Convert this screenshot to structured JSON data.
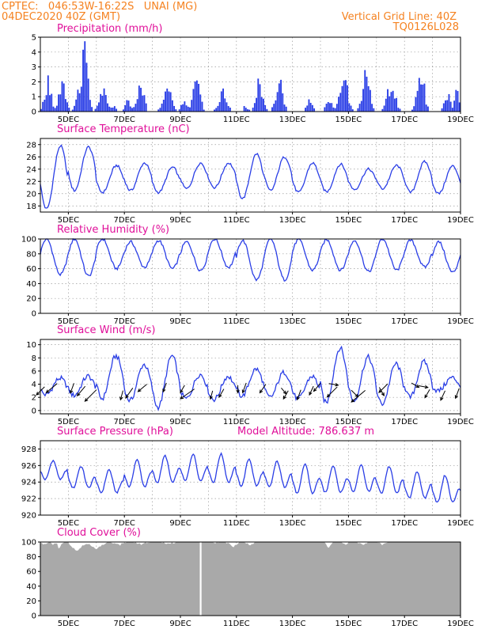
{
  "header": {
    "line1_left": "CPTEC:   046:53W-16:22S   UNAI (MG)",
    "line2_left": "04DEC2020 40Z (GMT)",
    "line1_right": "Vertical Grid Line: 40Z",
    "line2_right": "TQ0126L028"
  },
  "colors": {
    "header": "#f58220",
    "panel_title": "#e0109a",
    "line": "#2a3ee6",
    "precip_bar": "#2a3ee6",
    "cloud_fill": "#a9a9a9",
    "wind_arrow": "#000000"
  },
  "x_tick_labels": [
    "5DEC",
    "7DEC",
    "9DEC",
    "11DEC",
    "13DEC",
    "15DEC",
    "17DEC",
    "19DEC"
  ],
  "chart_data": [
    {
      "id": "precip",
      "type": "bar",
      "title": "Precipitation (mm/h)",
      "ylim": [
        0,
        5
      ],
      "yticks": [
        0,
        1,
        2,
        3,
        4,
        5
      ],
      "xlim_days": [
        4.0,
        19.0
      ],
      "grid": true,
      "events": [
        {
          "day": 4.25,
          "peak": 2.8,
          "width": 0.2
        },
        {
          "day": 4.75,
          "peak": 2.6,
          "width": 0.22
        },
        {
          "day": 5.3,
          "peak": 1.6,
          "width": 0.15
        },
        {
          "day": 5.55,
          "peak": 5.0,
          "width": 0.22
        },
        {
          "day": 6.2,
          "peak": 2.2,
          "width": 0.25
        },
        {
          "day": 6.6,
          "peak": 0.6,
          "width": 0.15
        },
        {
          "day": 7.1,
          "peak": 0.9,
          "width": 0.18
        },
        {
          "day": 7.55,
          "peak": 2.1,
          "width": 0.22
        },
        {
          "day": 8.5,
          "peak": 2.2,
          "width": 0.25
        },
        {
          "day": 9.1,
          "peak": 1.0,
          "width": 0.18
        },
        {
          "day": 9.55,
          "peak": 2.7,
          "width": 0.22
        },
        {
          "day": 10.5,
          "peak": 1.8,
          "width": 0.25
        },
        {
          "day": 11.3,
          "peak": 0.5,
          "width": 0.15
        },
        {
          "day": 11.8,
          "peak": 2.7,
          "width": 0.2
        },
        {
          "day": 12.5,
          "peak": 2.8,
          "width": 0.22
        },
        {
          "day": 13.6,
          "peak": 1.3,
          "width": 0.18
        },
        {
          "day": 14.3,
          "peak": 1.2,
          "width": 0.2
        },
        {
          "day": 14.8,
          "peak": 3.3,
          "width": 0.25
        },
        {
          "day": 15.6,
          "peak": 3.5,
          "width": 0.22
        },
        {
          "day": 16.5,
          "peak": 2.4,
          "width": 0.25
        },
        {
          "day": 17.55,
          "peak": 3.6,
          "width": 0.22
        },
        {
          "day": 18.5,
          "peak": 1.4,
          "width": 0.2
        },
        {
          "day": 18.85,
          "peak": 1.9,
          "width": 0.15
        }
      ]
    },
    {
      "id": "temp",
      "type": "line",
      "title": "Surface Temperature (nC)",
      "ylim": [
        17,
        29
      ],
      "yticks": [
        18,
        20,
        22,
        24,
        26,
        28
      ],
      "xlim_days": [
        4.0,
        19.0
      ],
      "grid": true,
      "daily_min": [
        17.5,
        20.5,
        20.2,
        20.5,
        20.2,
        20.8,
        21.0,
        19.2,
        20.5,
        20.2,
        20.3,
        20.7,
        20.8,
        20.2,
        20.0
      ],
      "daily_max": [
        27.8,
        27.6,
        24.6,
        25.0,
        24.3,
        25.0,
        25.0,
        26.5,
        26.0,
        25.0,
        24.8,
        24.0,
        24.6,
        25.2,
        24.5
      ]
    },
    {
      "id": "rh",
      "type": "line",
      "title": "Relative Humidity (%)",
      "ylim": [
        0,
        100
      ],
      "yticks": [
        0,
        20,
        40,
        60,
        80,
        100
      ],
      "xlim_days": [
        4.0,
        19.0
      ],
      "grid": true,
      "daily_max": [
        100,
        100,
        100,
        96,
        98,
        96,
        100,
        98,
        100,
        99,
        99,
        98,
        100,
        98,
        96
      ],
      "daily_min": [
        52,
        50,
        60,
        62,
        60,
        58,
        62,
        45,
        45,
        58,
        58,
        56,
        58,
        62,
        55
      ]
    },
    {
      "id": "wind",
      "type": "line",
      "title": "Surface Wind (m/s)",
      "ylim": [
        -0.5,
        10.8
      ],
      "yticks": [
        0,
        2,
        4,
        6,
        8,
        10
      ],
      "xlim_days": [
        4.0,
        19.0
      ],
      "grid": true,
      "daily_max": [
        4.9,
        5.2,
        8.3,
        7.0,
        8.3,
        5.5,
        5.2,
        6.3,
        5.8,
        5.2,
        9.5,
        8.1,
        7.1,
        7.4,
        5.0
      ],
      "daily_min": [
        2.4,
        2.3,
        1.8,
        1.5,
        0.5,
        1.8,
        1.7,
        2.2,
        2.0,
        1.8,
        1.2,
        1.5,
        1.0,
        2.0,
        3.0
      ],
      "vectors": [
        {
          "day": 4.15,
          "dir_deg": 225,
          "len": 0.7
        },
        {
          "day": 4.6,
          "dir_deg": 230,
          "len": 1.0
        },
        {
          "day": 5.2,
          "dir_deg": 200,
          "len": 0.6
        },
        {
          "day": 5.6,
          "dir_deg": 220,
          "len": 0.8
        },
        {
          "day": 6.0,
          "dir_deg": 225,
          "len": 1.2
        },
        {
          "day": 6.95,
          "dir_deg": 195,
          "len": 0.5
        },
        {
          "day": 7.3,
          "dir_deg": 215,
          "len": 0.8
        },
        {
          "day": 7.8,
          "dir_deg": 230,
          "len": 0.7
        },
        {
          "day": 8.5,
          "dir_deg": 200,
          "len": 0.5
        },
        {
          "day": 9.15,
          "dir_deg": 210,
          "len": 0.4
        },
        {
          "day": 9.5,
          "dir_deg": 235,
          "len": 1.3
        },
        {
          "day": 10.15,
          "dir_deg": 195,
          "len": 0.4
        },
        {
          "day": 10.55,
          "dir_deg": 210,
          "len": 0.5
        },
        {
          "day": 11.05,
          "dir_deg": 180,
          "len": 0.3
        },
        {
          "day": 11.35,
          "dir_deg": 200,
          "len": 0.6
        },
        {
          "day": 12.05,
          "dir_deg": 215,
          "len": 0.6
        },
        {
          "day": 12.6,
          "dir_deg": 140,
          "len": 0.3
        },
        {
          "day": 12.85,
          "dir_deg": 210,
          "len": 0.5
        },
        {
          "day": 13.3,
          "dir_deg": 200,
          "len": 0.6
        },
        {
          "day": 13.75,
          "dir_deg": 205,
          "len": 0.5
        },
        {
          "day": 14.0,
          "dir_deg": 220,
          "len": 0.6
        },
        {
          "day": 14.3,
          "dir_deg": 100,
          "len": 0.5
        },
        {
          "day": 14.6,
          "dir_deg": 225,
          "len": 1.0
        },
        {
          "day": 15.1,
          "dir_deg": 135,
          "len": 0.5
        },
        {
          "day": 15.6,
          "dir_deg": 230,
          "len": 1.4
        },
        {
          "day": 16.1,
          "dir_deg": 150,
          "len": 0.5
        },
        {
          "day": 16.4,
          "dir_deg": 225,
          "len": 0.8
        },
        {
          "day": 17.25,
          "dir_deg": 120,
          "len": 0.4
        },
        {
          "day": 17.5,
          "dir_deg": 100,
          "len": 0.5
        },
        {
          "day": 17.9,
          "dir_deg": 210,
          "len": 0.5
        },
        {
          "day": 18.45,
          "dir_deg": 205,
          "len": 0.6
        },
        {
          "day": 18.95,
          "dir_deg": 200,
          "len": 0.6
        }
      ]
    },
    {
      "id": "pres",
      "type": "line",
      "title": "Surface Pressure (hPa)",
      "annotation": "Model Altitude: 786.637 m",
      "ylim": [
        920,
        929
      ],
      "yticks": [
        920,
        922,
        924,
        926,
        928
      ],
      "xlim_days": [
        4.0,
        19.0
      ],
      "grid": true,
      "daily_mean": [
        925.2,
        924.3,
        923.8,
        924.7,
        925.2,
        925.4,
        925.3,
        924.8,
        924.6,
        924.0,
        924.0,
        924.1,
        923.9,
        923.3,
        922.8
      ],
      "daily_amp": [
        1.4,
        1.6,
        1.7,
        2.0,
        2.0,
        2.0,
        2.1,
        2.0,
        1.9,
        2.2,
        2.0,
        2.0,
        2.0,
        2.0,
        2.0
      ]
    },
    {
      "id": "cloud",
      "type": "area",
      "title": "Cloud Cover (%)",
      "ylim": [
        0,
        100
      ],
      "yticks": [
        0,
        20,
        40,
        60,
        80,
        100
      ],
      "xlim_days": [
        4.0,
        19.0
      ],
      "grid": true,
      "gap_day": 9.72,
      "dips": [
        {
          "day": 4.1,
          "to": 95,
          "width": 0.25
        },
        {
          "day": 4.6,
          "to": 88,
          "width": 0.3
        },
        {
          "day": 5.3,
          "to": 86,
          "width": 0.4
        },
        {
          "day": 6.0,
          "to": 90,
          "width": 0.5
        },
        {
          "day": 6.8,
          "to": 94,
          "width": 0.4
        },
        {
          "day": 7.6,
          "to": 96,
          "width": 0.5
        },
        {
          "day": 8.6,
          "to": 96,
          "width": 0.4
        },
        {
          "day": 10.2,
          "to": 97,
          "width": 0.3
        },
        {
          "day": 10.9,
          "to": 92,
          "width": 0.35
        },
        {
          "day": 11.5,
          "to": 95,
          "width": 0.3
        },
        {
          "day": 14.3,
          "to": 90,
          "width": 0.2
        },
        {
          "day": 14.9,
          "to": 96,
          "width": 0.2
        },
        {
          "day": 15.5,
          "to": 94,
          "width": 0.3
        },
        {
          "day": 16.2,
          "to": 95,
          "width": 0.25
        }
      ]
    }
  ]
}
